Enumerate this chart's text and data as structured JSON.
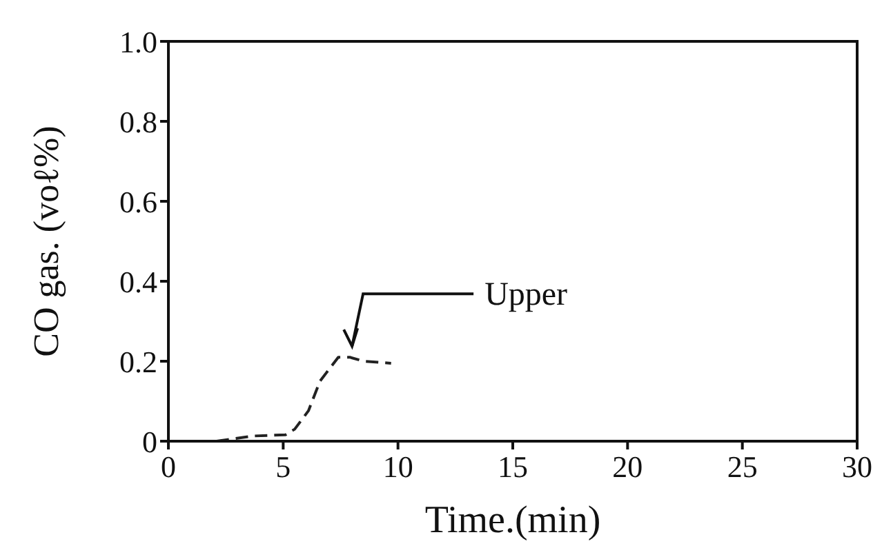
{
  "chart_data": {
    "type": "line",
    "xlabel": "Time.(min)",
    "ylabel": "CO gas.  (voℓ%)",
    "x": [
      2.1,
      3.7,
      5.1,
      5.5,
      6.1,
      6.6,
      7.0,
      7.4,
      7.9,
      8.5,
      9.7
    ],
    "series": [
      {
        "color": "#222222",
        "values": [
          0,
          0.013,
          0.016,
          0.03,
          0.076,
          0.15,
          0.18,
          0.21,
          0.21,
          0.2,
          0.195
        ]
      }
    ],
    "xlim": [
      0,
      30
    ],
    "xticks": [
      0,
      5,
      10,
      15,
      20,
      25,
      30
    ],
    "ylim": [
      0,
      1
    ],
    "yticks": [
      0,
      0.2,
      0.4,
      0.6,
      0.8,
      {
        "value": 1,
        "label": "1.0"
      }
    ],
    "annotations": [
      {
        "text": "Upper",
        "x": 8,
        "y": 0.21
      }
    ],
    "line_style": "dashed",
    "marker": "none",
    "legend": false,
    "grid": false
  }
}
